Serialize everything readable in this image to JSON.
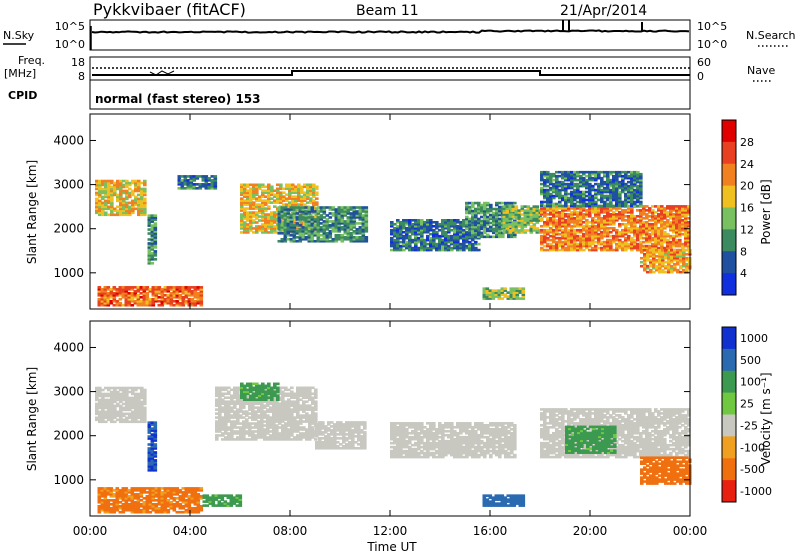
{
  "header": {
    "station": "Pykkvibaer (fitACF)",
    "beam": "Beam 11",
    "date": "21/Apr/2014"
  },
  "time_axis": {
    "label": "Time UT",
    "ticks": [
      "00:00",
      "04:00",
      "08:00",
      "12:00",
      "16:00",
      "20:00",
      "00:00"
    ],
    "range_hours": [
      0,
      24
    ]
  },
  "nsky_panel": {
    "left_label": "N.Sky",
    "right_label": "N.Search",
    "left_ticks": [
      "10^5",
      "10^0"
    ],
    "right_ticks": [
      "10^5",
      "10^0"
    ]
  },
  "freq_panel": {
    "left_label_line1": "Freq.",
    "left_label_line2": "[MHz]",
    "right_label": "Nave",
    "left_ticks": [
      "18",
      "8"
    ],
    "right_ticks": [
      "60",
      "0"
    ]
  },
  "cpid": {
    "label": "CPID",
    "text": "normal (fast stereo) 153"
  },
  "power_panel": {
    "ylabel": "Slant Range [km]",
    "yticks": [
      "4000",
      "3000",
      "2000",
      "1000"
    ],
    "colorbar_label": "Power [dB]",
    "colorbar_ticks": [
      "28",
      "24",
      "20",
      "16",
      "12",
      "8",
      "4"
    ],
    "colors": [
      "#1030e0",
      "#2050a0",
      "#3c8a60",
      "#78c060",
      "#f0c020",
      "#f08020",
      "#e84020",
      "#e00000"
    ]
  },
  "velocity_panel": {
    "ylabel": "Slant Range [km]",
    "yticks": [
      "4000",
      "3000",
      "2000",
      "1000"
    ],
    "colorbar_label": "Velocity [m s⁻¹]",
    "colorbar_ticks": [
      "1000",
      "500",
      "100",
      "25",
      "-25",
      "-100",
      "-500",
      "-1000"
    ],
    "colors": [
      "#1030d0",
      "#2a6ab0",
      "#3c9a50",
      "#70c840",
      "#c8c8c0",
      "#f0a020",
      "#f07010",
      "#e82010"
    ]
  },
  "chart_data": [
    {
      "type": "heatmap",
      "title": "Power",
      "xlabel": "Time UT",
      "ylabel": "Slant Range [km]",
      "colorbar": "Power [dB]",
      "xlim_hours": [
        0,
        24
      ],
      "ylim_km": [
        180,
        4600
      ],
      "scale_db": [
        0,
        32
      ],
      "regions": [
        {
          "t": [
            0.2,
            2.2
          ],
          "range_km": [
            2300,
            3100
          ],
          "power_db": 18
        },
        {
          "t": [
            0.3,
            4.5
          ],
          "range_km": [
            250,
            700
          ],
          "power_db": 24
        },
        {
          "t": [
            2.3,
            2.6
          ],
          "range_km": [
            1200,
            2300
          ],
          "power_db": 10
        },
        {
          "t": [
            3.5,
            5.0
          ],
          "range_km": [
            2900,
            3200
          ],
          "power_db": 8
        },
        {
          "t": [
            6.0,
            9.0
          ],
          "range_km": [
            1900,
            3000
          ],
          "power_db": 18
        },
        {
          "t": [
            7.5,
            11.0
          ],
          "range_km": [
            1700,
            2500
          ],
          "power_db": 10
        },
        {
          "t": [
            12.0,
            15.5
          ],
          "range_km": [
            1500,
            2200
          ],
          "power_db": 8
        },
        {
          "t": [
            15.0,
            17.0
          ],
          "range_km": [
            1800,
            2600
          ],
          "power_db": 10
        },
        {
          "t": [
            15.7,
            17.3
          ],
          "range_km": [
            400,
            650
          ],
          "power_db": 14
        },
        {
          "t": [
            16.5,
            18.0
          ],
          "range_km": [
            1900,
            2500
          ],
          "power_db": 14
        },
        {
          "t": [
            18.0,
            24.0
          ],
          "range_km": [
            1500,
            2500
          ],
          "power_db": 22
        },
        {
          "t": [
            18.0,
            22.0
          ],
          "range_km": [
            2500,
            3300
          ],
          "power_db": 8
        },
        {
          "t": [
            22.0,
            24.0
          ],
          "range_km": [
            1000,
            1500
          ],
          "power_db": 20
        }
      ]
    },
    {
      "type": "heatmap",
      "title": "Velocity",
      "xlabel": "Time UT",
      "ylabel": "Slant Range [km]",
      "colorbar": "Velocity [m s⁻¹]",
      "xlim_hours": [
        0,
        24
      ],
      "ylim_km": [
        180,
        4600
      ],
      "regions": [
        {
          "t": [
            0.2,
            2.2
          ],
          "range_km": [
            2300,
            3100
          ],
          "velocity": 0
        },
        {
          "t": [
            0.3,
            4.5
          ],
          "range_km": [
            250,
            800
          ],
          "velocity": -200
        },
        {
          "t": [
            2.3,
            2.6
          ],
          "range_km": [
            1200,
            2300
          ],
          "velocity": 500
        },
        {
          "t": [
            4.5,
            6.0
          ],
          "range_km": [
            400,
            650
          ],
          "velocity": 60
        },
        {
          "t": [
            5.0,
            9.0
          ],
          "range_km": [
            1900,
            3100
          ],
          "velocity": 0
        },
        {
          "t": [
            6.0,
            7.5
          ],
          "range_km": [
            2800,
            3200
          ],
          "velocity": 60
        },
        {
          "t": [
            9.0,
            11.0
          ],
          "range_km": [
            1700,
            2300
          ],
          "velocity": 0
        },
        {
          "t": [
            12.0,
            17.0
          ],
          "range_km": [
            1500,
            2300
          ],
          "velocity": 0
        },
        {
          "t": [
            15.7,
            17.3
          ],
          "range_km": [
            400,
            650
          ],
          "velocity": 300
        },
        {
          "t": [
            18.0,
            24.0
          ],
          "range_km": [
            1500,
            2600
          ],
          "velocity": 0
        },
        {
          "t": [
            19.0,
            21.0
          ],
          "range_km": [
            1600,
            2200
          ],
          "velocity": 60
        },
        {
          "t": [
            22.0,
            24.0
          ],
          "range_km": [
            900,
            1500
          ],
          "velocity": -300
        }
      ]
    }
  ]
}
